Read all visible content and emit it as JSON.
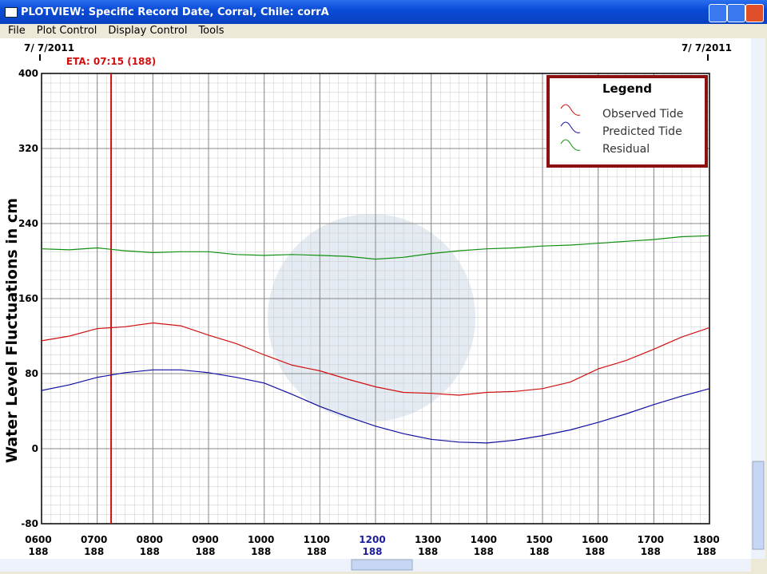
{
  "window": {
    "title": "PLOTVIEW: Specific Record Date, Corral, Chile: corrA",
    "menu": [
      "File",
      "Plot Control",
      "Display Control",
      "Tools"
    ]
  },
  "chart_data": {
    "type": "line",
    "ylabel": "Water Level Fluctuations in cm",
    "date_left": "7/ 7/2011",
    "date_right": "7/ 7/2011",
    "eta": {
      "label": "ETA: 07:15 (188)",
      "x": 7.25,
      "color": "#d01010"
    },
    "x": [
      6,
      6.5,
      7,
      7.5,
      8,
      8.5,
      9,
      9.5,
      10,
      10.5,
      11,
      11.5,
      12,
      12.5,
      13,
      13.5,
      14,
      14.5,
      15,
      15.5,
      16,
      16.5,
      17,
      17.5,
      18
    ],
    "xlim": [
      6,
      18
    ],
    "xticks": [
      {
        "value": 6,
        "label": "0600"
      },
      {
        "value": 7,
        "label": "0700"
      },
      {
        "value": 8,
        "label": "0800"
      },
      {
        "value": 9,
        "label": "0900"
      },
      {
        "value": 10,
        "label": "1000"
      },
      {
        "value": 11,
        "label": "1100"
      },
      {
        "value": 12,
        "label": "1200"
      },
      {
        "value": 13,
        "label": "1300"
      },
      {
        "value": 14,
        "label": "1400"
      },
      {
        "value": 15,
        "label": "1500"
      },
      {
        "value": 16,
        "label": "1600"
      },
      {
        "value": 17,
        "label": "1700"
      },
      {
        "value": 18,
        "label": "1800"
      }
    ],
    "xtick_sublabels": [
      "188",
      "188",
      "188",
      "188",
      "188",
      "188",
      "188",
      "188",
      "188",
      "188",
      "188",
      "188",
      "188"
    ],
    "highlight_xtick": 12,
    "highlight_color": "#1c1c9c",
    "ylim": [
      -80,
      400
    ],
    "yticks": [
      -80,
      0,
      80,
      160,
      240,
      320,
      400
    ],
    "grid": true,
    "legend": {
      "title": "Legend",
      "corner": "top-right"
    },
    "series": [
      {
        "name": "Observed Tide",
        "color": "#d01010",
        "values": [
          115,
          120,
          128,
          130,
          134,
          131,
          121,
          112,
          100,
          89,
          83,
          74,
          66,
          60,
          59,
          57,
          60,
          61,
          64,
          71,
          85,
          94,
          106,
          119,
          129
        ]
      },
      {
        "name": "Predicted Tide",
        "color": "#1010a0",
        "values": [
          62,
          68,
          76,
          81,
          84,
          84,
          81,
          76,
          70,
          58,
          45,
          34,
          24,
          16,
          10,
          7,
          6,
          9,
          14,
          20,
          28,
          37,
          47,
          56,
          64
        ]
      },
      {
        "name": "Residual",
        "color": "#109010",
        "values": [
          213,
          212,
          214,
          211,
          209,
          210,
          210,
          207,
          206,
          207,
          206,
          205,
          202,
          204,
          208,
          211,
          213,
          214,
          216,
          217,
          219,
          221,
          223,
          226,
          227
        ]
      }
    ]
  }
}
